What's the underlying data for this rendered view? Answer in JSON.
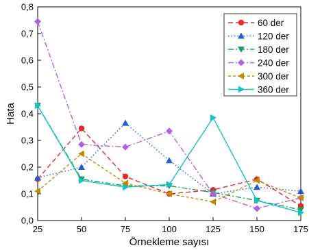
{
  "chart_data": {
    "type": "line",
    "xlabel": "Örnekleme sayısı",
    "ylabel": "Hata",
    "x": [
      25,
      50,
      75,
      100,
      125,
      150,
      175
    ],
    "x_ticks": [
      "25",
      "50",
      "75",
      "100",
      "125",
      "150",
      "175"
    ],
    "y_ticks": [
      "0,0",
      "0,1",
      "0,2",
      "0,3",
      "0,4",
      "0,5",
      "0,6",
      "0,7",
      "0,8"
    ],
    "xlim": [
      25,
      175
    ],
    "ylim": [
      0,
      0.8
    ],
    "grid": false,
    "legend_position": "top-right",
    "series": [
      {
        "name": "60 der",
        "color": "#e8282b",
        "dash": "dashed",
        "marker": "circle",
        "values": [
          0.155,
          0.345,
          0.165,
          0.1,
          0.115,
          0.155,
          0.055
        ]
      },
      {
        "name": "120 der",
        "color": "#1f5fd6",
        "dash": "dotted",
        "marker": "triangle-up",
        "values": [
          0.16,
          0.2,
          0.365,
          0.225,
          0.1,
          0.125,
          0.11
        ]
      },
      {
        "name": "180 der",
        "color": "#1f9e5a",
        "dash": "dash-dot",
        "marker": "triangle-down",
        "values": [
          0.43,
          0.155,
          0.13,
          0.13,
          0.105,
          0.075,
          0.04
        ]
      },
      {
        "name": "240 der",
        "color": "#b25fe0",
        "dash": "dash-dot",
        "marker": "diamond",
        "values": [
          0.745,
          0.285,
          0.275,
          0.335,
          0.1,
          0.045,
          0.085
        ]
      },
      {
        "name": "300 der",
        "color": "#c48a00",
        "dash": "short-dash",
        "marker": "triangle-left",
        "values": [
          0.11,
          0.25,
          0.14,
          0.1,
          0.07,
          0.15,
          0.085
        ]
      },
      {
        "name": "360 der",
        "color": "#13c2c2",
        "dash": "solid",
        "marker": "triangle-right",
        "values": [
          0.43,
          0.15,
          0.125,
          0.135,
          0.385,
          0.075,
          0.03
        ]
      }
    ]
  }
}
